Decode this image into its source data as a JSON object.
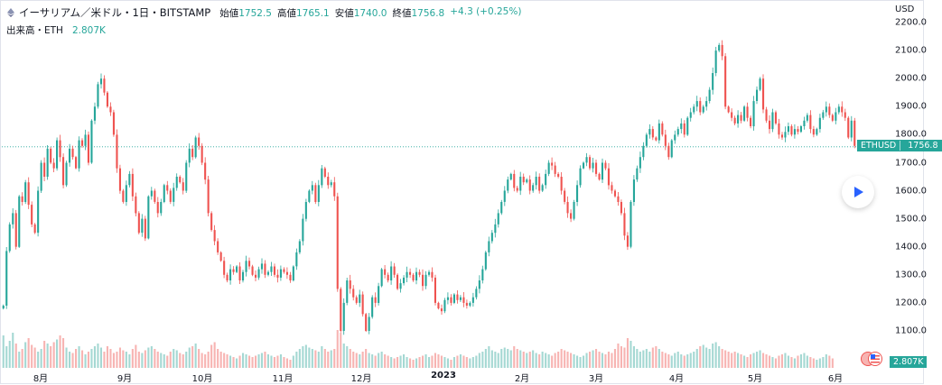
{
  "header": {
    "symbol_title": "イーサリアム／米ドル・1日・BITSTAMP",
    "ohlc": [
      {
        "label": "始値",
        "value": "1752.5"
      },
      {
        "label": "高値",
        "value": "1765.1"
      },
      {
        "label": "安値",
        "value": "1740.0"
      },
      {
        "label": "終値",
        "value": "1756.8"
      }
    ],
    "change": "+4.3 (+0.25%)"
  },
  "volume_legend": {
    "label": "出来高・ETH",
    "value": "2.807K"
  },
  "price_axis": {
    "currency": "USD",
    "ticks": [
      "2200.0",
      "2100.0",
      "2000.0",
      "1900.0",
      "1800.0",
      "1700.0",
      "1600.0",
      "1500.0",
      "1400.0",
      "1300.0",
      "1200.0",
      "1100.0"
    ]
  },
  "time_axis": {
    "labels": [
      "8月",
      "9月",
      "10月",
      "11月",
      "12月",
      "2023",
      "2月",
      "3月",
      "4月",
      "5月",
      "6月"
    ]
  },
  "last_price_tag": {
    "symbol": "ETHUSD",
    "price": "1756.8"
  },
  "volume_tag": "2.807K",
  "colors": {
    "up": "#26a69a",
    "down": "#ef5350",
    "vol_up": "#a5d8d3",
    "vol_down": "#f7b4b2"
  },
  "chart_data": {
    "type": "candlestick",
    "title": "イーサリアム／米ドル・1日・BITSTAMP",
    "y_range": [
      1080,
      2230
    ],
    "y_scale": "linear",
    "grid": false,
    "last_close": 1756.8,
    "closes": [
      1190,
      1385,
      1480,
      1520,
      1400,
      1580,
      1560,
      1630,
      1550,
      1480,
      1450,
      1600,
      1700,
      1650,
      1750,
      1700,
      1680,
      1780,
      1720,
      1620,
      1700,
      1750,
      1720,
      1680,
      1780,
      1760,
      1800,
      1700,
      1850,
      1900,
      1980,
      2000,
      1950,
      1900,
      1880,
      1800,
      1680,
      1600,
      1560,
      1620,
      1660,
      1580,
      1520,
      1450,
      1500,
      1430,
      1580,
      1600,
      1560,
      1520,
      1560,
      1620,
      1600,
      1560,
      1610,
      1650,
      1630,
      1600,
      1700,
      1750,
      1720,
      1790,
      1760,
      1700,
      1640,
      1520,
      1460,
      1420,
      1380,
      1350,
      1300,
      1280,
      1320,
      1310,
      1330,
      1280,
      1310,
      1350,
      1330,
      1300,
      1290,
      1320,
      1340,
      1300,
      1310,
      1330,
      1300,
      1290,
      1320,
      1310,
      1300,
      1280,
      1330,
      1380,
      1420,
      1500,
      1560,
      1600,
      1620,
      1560,
      1620,
      1680,
      1650,
      1620,
      1630,
      1580,
      1250,
      1100,
      1200,
      1280,
      1250,
      1220,
      1200,
      1230,
      1160,
      1100,
      1150,
      1220,
      1200,
      1260,
      1320,
      1300,
      1280,
      1330,
      1300,
      1250,
      1270,
      1290,
      1310,
      1300,
      1280,
      1310,
      1300,
      1260,
      1300,
      1310,
      1290,
      1200,
      1180,
      1170,
      1210,
      1220,
      1200,
      1230,
      1210,
      1220,
      1200,
      1190,
      1200,
      1220,
      1250,
      1280,
      1320,
      1380,
      1420,
      1450,
      1480,
      1520,
      1560,
      1600,
      1640,
      1660,
      1610,
      1600,
      1650,
      1630,
      1640,
      1600,
      1620,
      1650,
      1600,
      1620,
      1660,
      1700,
      1690,
      1660,
      1650,
      1600,
      1560,
      1520,
      1500,
      1560,
      1620,
      1680,
      1700,
      1720,
      1680,
      1700,
      1660,
      1640,
      1700,
      1680,
      1620,
      1600,
      1580,
      1560,
      1520,
      1440,
      1400,
      1560,
      1640,
      1680,
      1720,
      1760,
      1800,
      1820,
      1790,
      1780,
      1840,
      1800,
      1760,
      1720,
      1780,
      1800,
      1820,
      1840,
      1800,
      1860,
      1880,
      1900,
      1920,
      1880,
      1900,
      1920,
      1960,
      2020,
      2100,
      2120,
      2080,
      1900,
      1880,
      1860,
      1840,
      1870,
      1850,
      1900,
      1860,
      1830,
      1920,
      1960,
      2000,
      1890,
      1850,
      1820,
      1880,
      1840,
      1800,
      1790,
      1810,
      1830,
      1800,
      1820,
      1810,
      1830,
      1850,
      1870,
      1820,
      1800,
      1820,
      1860,
      1880,
      1900,
      1870,
      1850,
      1880,
      1900,
      1880,
      1860,
      1790,
      1850,
      1760
    ],
    "volume": [
      120,
      80,
      100,
      130,
      90,
      60,
      70,
      95,
      110,
      85,
      75,
      60,
      70,
      100,
      90,
      80,
      95,
      105,
      120,
      110,
      75,
      60,
      55,
      70,
      80,
      65,
      50,
      60,
      70,
      80,
      90,
      75,
      60,
      80,
      70,
      55,
      60,
      75,
      65,
      60,
      50,
      70,
      85,
      60,
      55,
      65,
      75,
      80,
      70,
      60,
      55,
      50,
      45,
      60,
      70,
      65,
      55,
      50,
      60,
      75,
      80,
      90,
      70,
      55,
      50,
      60,
      85,
      95,
      70,
      60,
      55,
      50,
      45,
      40,
      35,
      45,
      55,
      50,
      45,
      40,
      45,
      50,
      55,
      60,
      50,
      45,
      40,
      45,
      50,
      40,
      35,
      30,
      45,
      60,
      70,
      80,
      85,
      75,
      70,
      65,
      60,
      80,
      70,
      60,
      65,
      70,
      140,
      130,
      90,
      80,
      70,
      60,
      55,
      50,
      60,
      70,
      55,
      50,
      45,
      55,
      60,
      50,
      45,
      40,
      35,
      40,
      45,
      50,
      40,
      35,
      30,
      35,
      40,
      45,
      50,
      40,
      45,
      55,
      50,
      45,
      40,
      35,
      30,
      40,
      45,
      50,
      45,
      40,
      35,
      40,
      45,
      55,
      60,
      70,
      80,
      65,
      60,
      55,
      70,
      75,
      70,
      65,
      80,
      70,
      65,
      60,
      55,
      60,
      65,
      55,
      50,
      60,
      55,
      50,
      45,
      55,
      60,
      70,
      65,
      60,
      55,
      50,
      45,
      40,
      45,
      55,
      60,
      65,
      70,
      60,
      55,
      50,
      60,
      55,
      70,
      90,
      80,
      75,
      110,
      100,
      80,
      70,
      60,
      65,
      70,
      60,
      75,
      80,
      70,
      60,
      55,
      50,
      45,
      55,
      60,
      50,
      45,
      50,
      55,
      60,
      70,
      80,
      85,
      75,
      70,
      90,
      95,
      80,
      70,
      65,
      60,
      55,
      60,
      55,
      50,
      45,
      40,
      50,
      55,
      60,
      65,
      55,
      50,
      45,
      40,
      35,
      45,
      50,
      55,
      45,
      40,
      35,
      45,
      50,
      55,
      45,
      40,
      35,
      30,
      35,
      40,
      50,
      45,
      35
    ]
  }
}
